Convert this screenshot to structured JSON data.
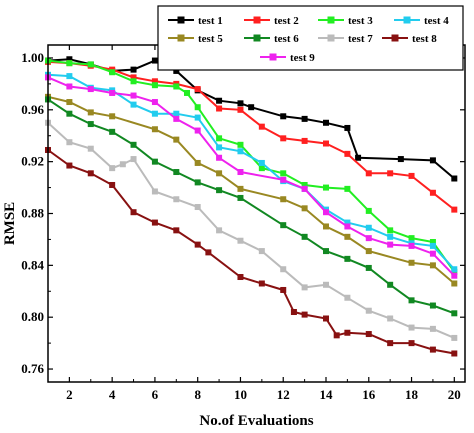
{
  "chart_data": {
    "type": "line",
    "xlabel": "No.of Evaluations",
    "ylabel": "RMSE",
    "xlim": [
      1,
      20.5
    ],
    "ylim": [
      0.75,
      1.01
    ],
    "xticks": [
      2,
      4,
      6,
      8,
      10,
      12,
      14,
      16,
      18,
      20
    ],
    "xtick_labels": [
      "2",
      "4",
      "6",
      "8",
      "10",
      "12",
      "14",
      "16",
      "18",
      "20"
    ],
    "yticks": [
      0.76,
      0.8,
      0.84,
      0.88,
      0.92,
      0.96,
      1.0
    ],
    "ytick_labels": [
      "0.76",
      "0.80",
      "0.84",
      "0.88",
      "0.92",
      "0.96",
      "1.00"
    ],
    "grid": false,
    "legend_position": "top",
    "series": [
      {
        "name": "test 1",
        "color": "#000000",
        "marker": "square",
        "points": [
          [
            1,
            0.998
          ],
          [
            2,
            0.999
          ],
          [
            3,
            0.995
          ],
          [
            4,
            0.99
          ],
          [
            5,
            0.991
          ],
          [
            6,
            0.998
          ],
          [
            7,
            0.99
          ],
          [
            8,
            0.975
          ],
          [
            9,
            0.967
          ],
          [
            10,
            0.965
          ],
          [
            10.5,
            0.962
          ],
          [
            12,
            0.955
          ],
          [
            13,
            0.953
          ],
          [
            14,
            0.95
          ],
          [
            15,
            0.946
          ],
          [
            15.5,
            0.923
          ],
          [
            17.5,
            0.922
          ],
          [
            19,
            0.921
          ],
          [
            20,
            0.907
          ]
        ]
      },
      {
        "name": "test 2",
        "color": "#ff2020",
        "marker": "square",
        "points": [
          [
            1,
            0.997
          ],
          [
            2,
            0.996
          ],
          [
            3,
            0.994
          ],
          [
            4,
            0.991
          ],
          [
            5,
            0.985
          ],
          [
            6,
            0.982
          ],
          [
            7,
            0.98
          ],
          [
            8,
            0.976
          ],
          [
            9,
            0.961
          ],
          [
            10,
            0.96
          ],
          [
            11,
            0.947
          ],
          [
            12,
            0.938
          ],
          [
            13,
            0.936
          ],
          [
            14,
            0.934
          ],
          [
            15,
            0.926
          ],
          [
            16,
            0.911
          ],
          [
            17,
            0.911
          ],
          [
            18,
            0.909
          ],
          [
            19,
            0.896
          ],
          [
            20,
            0.883
          ]
        ]
      },
      {
        "name": "test 3",
        "color": "#22ee22",
        "marker": "square",
        "points": [
          [
            1,
            0.998
          ],
          [
            2,
            0.996
          ],
          [
            3,
            0.995
          ],
          [
            4,
            0.989
          ],
          [
            5,
            0.982
          ],
          [
            6,
            0.979
          ],
          [
            7,
            0.978
          ],
          [
            7.5,
            0.973
          ],
          [
            8,
            0.962
          ],
          [
            9,
            0.938
          ],
          [
            10,
            0.933
          ],
          [
            11,
            0.915
          ],
          [
            12,
            0.911
          ],
          [
            13,
            0.902
          ],
          [
            14,
            0.9
          ],
          [
            15,
            0.899
          ],
          [
            16,
            0.882
          ],
          [
            17,
            0.867
          ],
          [
            18,
            0.861
          ],
          [
            19,
            0.858
          ],
          [
            20,
            0.835
          ]
        ]
      },
      {
        "name": "test 4",
        "color": "#22ccee",
        "marker": "square",
        "points": [
          [
            1,
            0.987
          ],
          [
            2,
            0.986
          ],
          [
            3,
            0.977
          ],
          [
            4,
            0.975
          ],
          [
            5,
            0.964
          ],
          [
            6,
            0.957
          ],
          [
            7,
            0.957
          ],
          [
            8,
            0.954
          ],
          [
            9,
            0.931
          ],
          [
            10,
            0.928
          ],
          [
            11,
            0.919
          ],
          [
            12,
            0.905
          ],
          [
            13,
            0.899
          ],
          [
            14,
            0.883
          ],
          [
            15,
            0.873
          ],
          [
            16,
            0.869
          ],
          [
            17,
            0.862
          ],
          [
            18,
            0.857
          ],
          [
            19,
            0.855
          ],
          [
            20,
            0.837
          ]
        ]
      },
      {
        "name": "test 5",
        "color": "#998822",
        "marker": "square",
        "points": [
          [
            1,
            0.97
          ],
          [
            2,
            0.966
          ],
          [
            3,
            0.958
          ],
          [
            4,
            0.955
          ],
          [
            6,
            0.945
          ],
          [
            7,
            0.937
          ],
          [
            8,
            0.919
          ],
          [
            9,
            0.911
          ],
          [
            10,
            0.899
          ],
          [
            12,
            0.891
          ],
          [
            13,
            0.884
          ],
          [
            14,
            0.87
          ],
          [
            15,
            0.862
          ],
          [
            16,
            0.851
          ],
          [
            18,
            0.842
          ],
          [
            19,
            0.84
          ],
          [
            20,
            0.826
          ]
        ]
      },
      {
        "name": "test 6",
        "color": "#118822",
        "marker": "square",
        "points": [
          [
            1,
            0.968
          ],
          [
            2,
            0.957
          ],
          [
            3,
            0.949
          ],
          [
            4,
            0.943
          ],
          [
            5,
            0.933
          ],
          [
            6,
            0.92
          ],
          [
            7,
            0.912
          ],
          [
            8,
            0.904
          ],
          [
            9,
            0.898
          ],
          [
            10,
            0.892
          ],
          [
            12,
            0.871
          ],
          [
            13,
            0.862
          ],
          [
            14,
            0.851
          ],
          [
            15,
            0.845
          ],
          [
            16,
            0.838
          ],
          [
            17,
            0.825
          ],
          [
            18,
            0.813
          ],
          [
            19,
            0.809
          ],
          [
            20,
            0.803
          ]
        ]
      },
      {
        "name": "test 7",
        "color": "#bbbbbb",
        "marker": "square",
        "points": [
          [
            1,
            0.95
          ],
          [
            2,
            0.935
          ],
          [
            3,
            0.93
          ],
          [
            4,
            0.915
          ],
          [
            4.5,
            0.918
          ],
          [
            5,
            0.922
          ],
          [
            6,
            0.897
          ],
          [
            7,
            0.891
          ],
          [
            8,
            0.885
          ],
          [
            9,
            0.867
          ],
          [
            10,
            0.859
          ],
          [
            11,
            0.851
          ],
          [
            12,
            0.837
          ],
          [
            13,
            0.823
          ],
          [
            14,
            0.825
          ],
          [
            15,
            0.815
          ],
          [
            16,
            0.805
          ],
          [
            17,
            0.799
          ],
          [
            18,
            0.792
          ],
          [
            19,
            0.791
          ],
          [
            20,
            0.784
          ]
        ]
      },
      {
        "name": "test 8",
        "color": "#881111",
        "marker": "square",
        "points": [
          [
            1,
            0.929
          ],
          [
            2,
            0.917
          ],
          [
            3,
            0.911
          ],
          [
            4,
            0.902
          ],
          [
            5,
            0.881
          ],
          [
            6,
            0.873
          ],
          [
            7,
            0.867
          ],
          [
            8,
            0.856
          ],
          [
            8.5,
            0.85
          ],
          [
            10,
            0.831
          ],
          [
            11,
            0.826
          ],
          [
            12,
            0.821
          ],
          [
            12.5,
            0.804
          ],
          [
            13,
            0.802
          ],
          [
            14,
            0.799
          ],
          [
            14.5,
            0.786
          ],
          [
            15,
            0.788
          ],
          [
            16,
            0.787
          ],
          [
            17,
            0.78
          ],
          [
            18,
            0.78
          ],
          [
            19,
            0.775
          ],
          [
            20,
            0.772
          ]
        ]
      },
      {
        "name": "test 9",
        "color": "#ee22ee",
        "marker": "square",
        "points": [
          [
            1,
            0.985
          ],
          [
            2,
            0.978
          ],
          [
            3,
            0.976
          ],
          [
            4,
            0.973
          ],
          [
            5,
            0.971
          ],
          [
            6,
            0.966
          ],
          [
            7,
            0.953
          ],
          [
            8,
            0.944
          ],
          [
            9,
            0.923
          ],
          [
            10,
            0.912
          ],
          [
            12,
            0.906
          ],
          [
            13,
            0.899
          ],
          [
            14,
            0.881
          ],
          [
            15,
            0.87
          ],
          [
            16,
            0.861
          ],
          [
            17,
            0.856
          ],
          [
            18,
            0.855
          ],
          [
            19,
            0.849
          ],
          [
            20,
            0.832
          ]
        ]
      }
    ]
  }
}
